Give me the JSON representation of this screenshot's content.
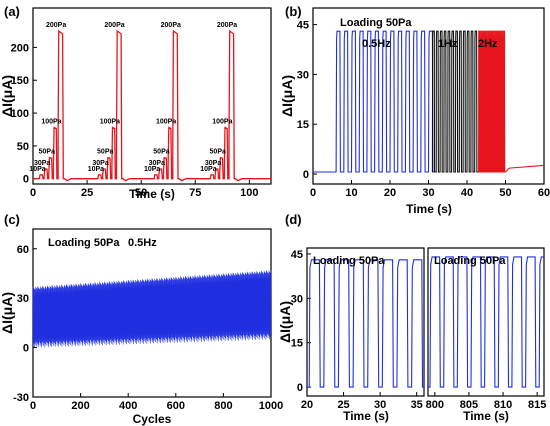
{
  "panel_labels": [
    "(a)",
    "(b)",
    "(c)",
    "(d)"
  ],
  "colors": {
    "red": "#e8141c",
    "blue": "#1f2fe0",
    "black": "#111111"
  },
  "chart_data": [
    {
      "id": "a",
      "type": "line",
      "xlabel": "Time (s)",
      "ylabel": "ΔI(μA)",
      "xlim": [
        0,
        110
      ],
      "ylim": [
        -8,
        260
      ],
      "xticks": [
        "0",
        "25",
        "50",
        "75",
        "100"
      ],
      "yticks": [
        "0",
        "50",
        "100",
        "150",
        "200"
      ],
      "series": [
        {
          "color": "red",
          "cycles_start_s": [
            3,
            30,
            56,
            82
          ],
          "levels_pa": [
            10,
            30,
            50,
            100,
            200
          ],
          "current_ua": [
            6,
            15,
            32,
            78,
            225
          ]
        }
      ],
      "annotations": [
        "10Pa",
        "30Pa",
        "50Pa",
        "100Pa",
        "200Pa",
        "10Pa",
        "30Pa",
        "50Pa",
        "100Pa",
        "200Pa",
        "10Pa",
        "30Pa",
        "50Pa",
        "100Pa",
        "200Pa",
        "10Pa",
        "30Pa",
        "50Pa",
        "100Pa",
        "200Pa"
      ]
    },
    {
      "id": "b",
      "type": "line",
      "title": "Loading 50Pa",
      "xlabel": "Time (s)",
      "ylabel": "ΔI(μA)",
      "xlim": [
        0,
        60
      ],
      "ylim": [
        -3,
        50
      ],
      "xticks": [
        "0",
        "10",
        "20",
        "30",
        "40",
        "50",
        "60"
      ],
      "yticks": [
        "0",
        "15",
        "30",
        "45"
      ],
      "series": [
        {
          "name": "0.5Hz",
          "color": "blue",
          "x_range": [
            6,
            31
          ],
          "peak_ua": 43
        },
        {
          "name": "1Hz",
          "color": "black",
          "x_range": [
            31,
            43
          ],
          "peak_ua": 43
        },
        {
          "name": "2Hz",
          "color": "red",
          "x_range": [
            43,
            50
          ],
          "peak_ua": 43
        }
      ]
    },
    {
      "id": "c",
      "type": "area",
      "title": "Loading 50Pa",
      "subtitle": "0.5Hz",
      "xlabel": "Cycles",
      "ylabel": "ΔI(μA)",
      "xlim": [
        0,
        1000
      ],
      "ylim": [
        -30,
        72
      ],
      "xticks": [
        "0",
        "200",
        "400",
        "600",
        "800",
        "1000"
      ],
      "yticks": [
        "-30",
        "0",
        "30",
        "60"
      ],
      "series": [
        {
          "color": "blue",
          "x": [
            0,
            1000
          ],
          "peak_ua": [
            37,
            47
          ],
          "base_ua": [
            0,
            5
          ]
        }
      ]
    },
    {
      "id": "d1",
      "type": "line",
      "title": "Loading 50Pa",
      "xlabel": "Time (s)",
      "ylabel": "ΔI(μA)",
      "xlim": [
        20,
        36
      ],
      "ylim": [
        -3,
        47
      ],
      "xticks": [
        "20",
        "25",
        "30",
        "35"
      ],
      "yticks": [
        "0",
        "15",
        "30",
        "45"
      ],
      "series": [
        {
          "color": "blue",
          "peak_ua": 43,
          "period_s": 2
        }
      ]
    },
    {
      "id": "d2",
      "type": "line",
      "title": "Loading 50Pa",
      "xlabel": "Time (s)",
      "xlim": [
        799,
        816
      ],
      "ylim": [
        -3,
        47
      ],
      "xticks": [
        "800",
        "805",
        "810",
        "815"
      ],
      "series": [
        {
          "color": "blue",
          "peak_ua": 44,
          "period_s": 2
        }
      ]
    }
  ]
}
